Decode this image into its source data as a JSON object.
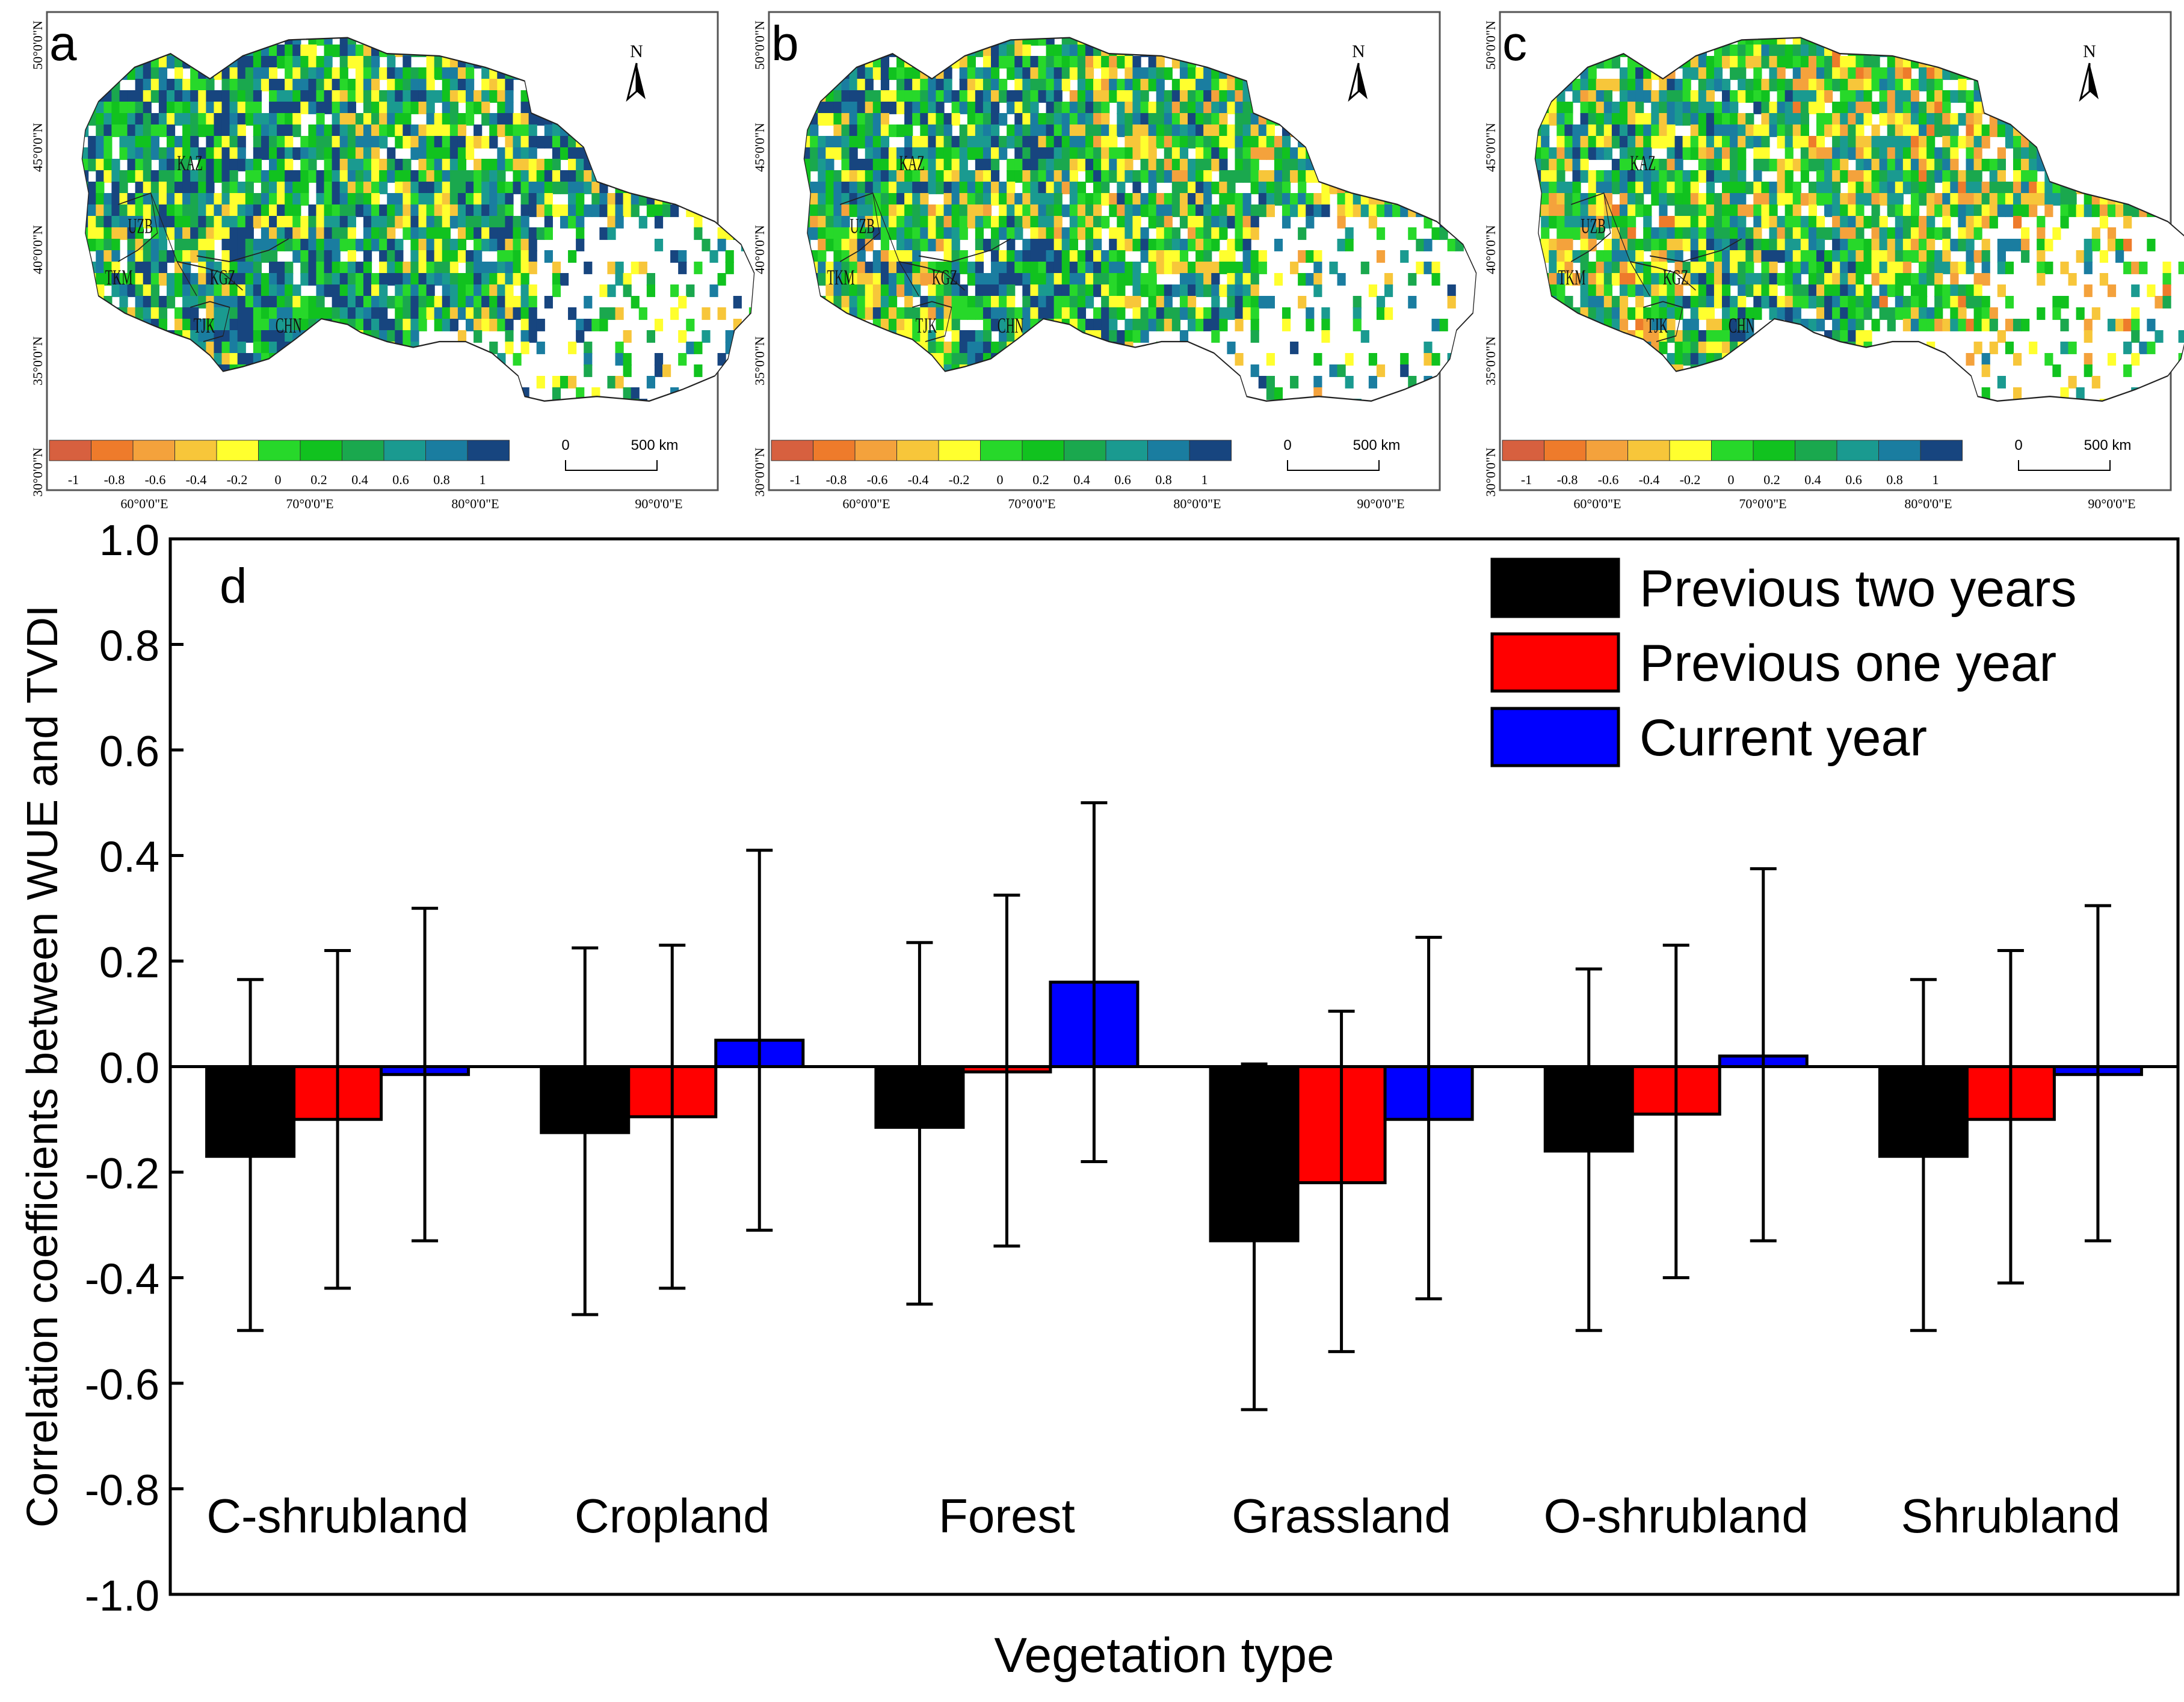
{
  "maps": [
    {
      "label": "a",
      "north": "N",
      "lat_labels": [
        "50°0'0\"N",
        "45°0'0\"N",
        "40°0'0\"N",
        "35°0'0\"N",
        "30°0'0\"N"
      ],
      "lon_labels": [
        "60°0'0\"E",
        "70°0'0\"E",
        "80°0'0\"E",
        "90°0'0\"E"
      ],
      "countries": [
        "KAZ",
        "UZB",
        "TKM",
        "KGZ",
        "TJK",
        "CHN"
      ],
      "colorbar_ticks": [
        "-1",
        "-0.8",
        "-0.6",
        "-0.4",
        "-0.2",
        "0",
        "0.2",
        "0.4",
        "0.6",
        "0.8",
        "1"
      ],
      "scale_zero": "0",
      "scale_label": "500 km",
      "bias": 0.15
    },
    {
      "label": "b",
      "north": "N",
      "lat_labels": [
        "50°0'0\"N",
        "45°0'0\"N",
        "40°0'0\"N",
        "35°0'0\"N",
        "30°0'0\"N"
      ],
      "lon_labels": [
        "60°0'0\"E",
        "70°0'0\"E",
        "80°0'0\"E",
        "90°0'0\"E"
      ],
      "countries": [
        "KAZ",
        "UZB",
        "TKM",
        "KGZ",
        "TJK",
        "CHN"
      ],
      "colorbar_ticks": [
        "-1",
        "-0.8",
        "-0.6",
        "-0.4",
        "-0.2",
        "0",
        "0.2",
        "0.4",
        "0.6",
        "0.8",
        "1"
      ],
      "scale_zero": "0",
      "scale_label": "500 km",
      "bias": 0.0
    },
    {
      "label": "c",
      "north": "N",
      "lat_labels": [
        "50°0'0\"N",
        "45°0'0\"N",
        "40°0'0\"N",
        "35°0'0\"N",
        "30°0'0\"N"
      ],
      "lon_labels": [
        "60°0'0\"E",
        "70°0'0\"E",
        "80°0'0\"E",
        "90°0'0\"E"
      ],
      "countries": [
        "KAZ",
        "UZB",
        "TKM",
        "KGZ",
        "TJK",
        "CHN"
      ],
      "colorbar_ticks": [
        "-1",
        "-0.8",
        "-0.6",
        "-0.4",
        "-0.2",
        "0",
        "0.2",
        "0.4",
        "0.6",
        "0.8",
        "1"
      ],
      "scale_zero": "0",
      "scale_label": "500 km",
      "bias": -0.15
    }
  ],
  "colorbar_colors": [
    "#d7603f",
    "#ee7b2b",
    "#f4a23c",
    "#f7c63a",
    "#ffff2e",
    "#27d82a",
    "#11c21f",
    "#1aa84e",
    "#1a9a90",
    "#1a7da0",
    "#17457f"
  ],
  "chart_data": {
    "type": "bar",
    "panel_label": "d",
    "title": "",
    "xlabel": "Vegetation type",
    "ylabel": "Correlation coefficients between WUE and TVDI",
    "ylim": [
      -1.0,
      1.0
    ],
    "yticks": [
      "-1.0",
      "-0.8",
      "-0.6",
      "-0.4",
      "-0.2",
      "0.0",
      "0.2",
      "0.4",
      "0.6",
      "0.8",
      "1.0"
    ],
    "categories": [
      "C-shrubland",
      "Cropland",
      "Forest",
      "Grassland",
      "O-shrubland",
      "Shrubland"
    ],
    "legend_position": "top-right",
    "series": [
      {
        "name": "Previous two years",
        "color": "#000000",
        "values": [
          -0.17,
          -0.125,
          -0.115,
          -0.33,
          -0.16,
          -0.17
        ],
        "err_low": [
          -0.5,
          -0.47,
          -0.45,
          -0.65,
          -0.5,
          -0.5
        ],
        "err_high": [
          0.165,
          0.225,
          0.235,
          0.005,
          0.185,
          0.165
        ]
      },
      {
        "name": "Previous one year",
        "color": "#ff0000",
        "values": [
          -0.1,
          -0.095,
          -0.01,
          -0.22,
          -0.09,
          -0.1
        ],
        "err_low": [
          -0.42,
          -0.42,
          -0.34,
          -0.54,
          -0.4,
          -0.41
        ],
        "err_high": [
          0.22,
          0.23,
          0.325,
          0.105,
          0.23,
          0.22
        ]
      },
      {
        "name": "Current year",
        "color": "#0000ff",
        "values": [
          -0.015,
          0.05,
          0.16,
          -0.1,
          0.02,
          -0.015
        ],
        "err_low": [
          -0.33,
          -0.31,
          -0.18,
          -0.44,
          -0.33,
          -0.33
        ],
        "err_high": [
          0.3,
          0.41,
          0.5,
          0.245,
          0.375,
          0.305
        ]
      }
    ]
  }
}
